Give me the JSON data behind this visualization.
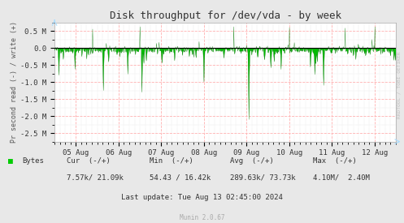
{
  "title": "Disk throughput for /dev/vda - by week",
  "ylabel": "Pr second read (-) / write (+)",
  "xlabel_dates": [
    "05 Aug",
    "06 Aug",
    "07 Aug",
    "08 Aug",
    "09 Aug",
    "10 Aug",
    "11 Aug",
    "12 Aug"
  ],
  "ylim": [
    -2750000.0,
    750000.0
  ],
  "yticks": [
    -2500000.0,
    -2000000.0,
    -1500000.0,
    -1000000.0,
    -500000.0,
    0.0,
    500000.0
  ],
  "ytick_labels": [
    "-2.5 M",
    "-2.0 M",
    "-1.5 M",
    "-1.0 M",
    "-0.5 M",
    "0.0",
    "0.5 M"
  ],
  "bg_color": "#e8e8e8",
  "plot_bg_color": "#ffffff",
  "grid_color_major": "#ffb0b0",
  "grid_color_minor": "#d0d0d0",
  "fill_color": "#00cc00",
  "line_color": "#006600",
  "zero_line_color": "#000000",
  "title_color": "#333333",
  "legend_label": "Bytes",
  "cur_label": "Cur  (-/+)",
  "min_label": "Min  (-/+)",
  "avg_label": "Avg  (-/+)",
  "max_label": "Max  (-/+)",
  "cur_val": "7.57k/ 21.09k",
  "min_val": "54.43 / 16.42k",
  "avg_val": "289.63k/ 73.73k",
  "max_val": "4.10M/  2.40M",
  "last_update": "Last update: Tue Aug 13 02:45:00 2024",
  "munin_version": "Munin 2.0.67",
  "rrdtool_text": "RRDTOOL / TOBI OETIKER",
  "n_points": 700,
  "seed": 42
}
